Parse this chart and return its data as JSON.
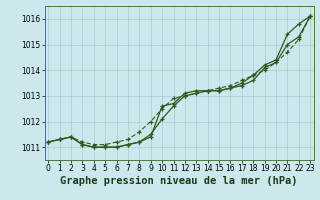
{
  "title": "Graphe pression niveau de la mer (hPa)",
  "bg_color": "#cce8ec",
  "grid_color": "#a8cdd4",
  "line_color": "#2d5a1e",
  "x": [
    0,
    1,
    2,
    3,
    4,
    5,
    6,
    7,
    8,
    9,
    10,
    11,
    12,
    13,
    14,
    15,
    16,
    17,
    18,
    19,
    20,
    21,
    22,
    23
  ],
  "y_line1": [
    1011.2,
    1011.3,
    1011.4,
    1011.1,
    1011.0,
    1011.0,
    1011.0,
    1011.1,
    1011.2,
    1011.4,
    1012.6,
    1012.7,
    1013.1,
    1013.2,
    1013.2,
    1013.2,
    1013.3,
    1013.4,
    1013.6,
    1014.1,
    1014.3,
    1015.0,
    1015.3,
    1016.1
  ],
  "y_line2": [
    1011.2,
    1011.3,
    1011.4,
    1011.2,
    1011.1,
    1011.1,
    1011.2,
    1011.3,
    1011.6,
    1012.0,
    1012.5,
    1012.9,
    1013.0,
    1013.1,
    1013.2,
    1013.3,
    1013.4,
    1013.6,
    1013.8,
    1014.0,
    1014.3,
    1014.7,
    1015.2,
    1016.1
  ],
  "y_line3": [
    1011.2,
    1011.3,
    1011.4,
    1011.1,
    1011.0,
    1011.0,
    1011.0,
    1011.1,
    1011.2,
    1011.5,
    1012.1,
    1012.6,
    1013.0,
    1013.1,
    1013.2,
    1013.2,
    1013.3,
    1013.5,
    1013.8,
    1014.2,
    1014.4,
    1015.4,
    1015.8,
    1016.1
  ],
  "ylim": [
    1010.5,
    1016.5
  ],
  "yticks": [
    1011,
    1012,
    1013,
    1014,
    1015,
    1016
  ],
  "xticks": [
    0,
    1,
    2,
    3,
    4,
    5,
    6,
    7,
    8,
    9,
    10,
    11,
    12,
    13,
    14,
    15,
    16,
    17,
    18,
    19,
    20,
    21,
    22,
    23
  ],
  "title_fontsize": 7.5,
  "tick_fontsize": 5.5,
  "figsize": [
    3.2,
    2.0
  ],
  "dpi": 100
}
